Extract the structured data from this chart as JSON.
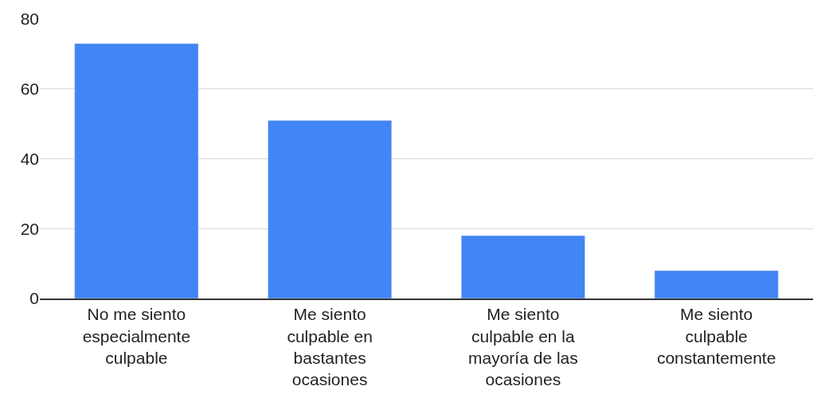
{
  "chart_data": {
    "type": "bar",
    "categories": [
      "No me siento especialmente culpable",
      "Me siento culpable en bastantes ocasiones",
      "Me siento culpable en la mayoría de las ocasiones",
      "Me siento culpable constantemente"
    ],
    "values": [
      73,
      51,
      18,
      8
    ],
    "color": "#4285f4",
    "ylim": [
      0,
      80
    ],
    "yticks": [
      0,
      20,
      40,
      60,
      80
    ],
    "grid": "y",
    "legend": false
  }
}
